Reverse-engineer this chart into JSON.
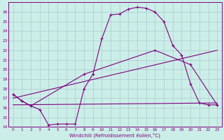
{
  "xlabel": "Windchill (Refroidissement éolien,°C)",
  "bg_color": "#cceee8",
  "grid_color": "#aacccc",
  "line_color": "#800080",
  "xlim": [
    -0.5,
    23.5
  ],
  "ylim": [
    14,
    27
  ],
  "xticks": [
    0,
    1,
    2,
    3,
    4,
    5,
    6,
    7,
    8,
    9,
    10,
    11,
    12,
    13,
    14,
    15,
    16,
    17,
    18,
    19,
    20,
    21,
    22,
    23
  ],
  "yticks": [
    14,
    15,
    16,
    17,
    18,
    19,
    20,
    21,
    22,
    23,
    24,
    25,
    26
  ],
  "line1_x": [
    0,
    1,
    2,
    3,
    4,
    5,
    6,
    7,
    8,
    9,
    10,
    11,
    12,
    13,
    14,
    15,
    16,
    17,
    18,
    19,
    20,
    21,
    22,
    23
  ],
  "line1_y": [
    17.4,
    16.7,
    16.2,
    15.8,
    14.2,
    14.3,
    14.3,
    14.3,
    18.0,
    19.5,
    23.2,
    25.7,
    25.8,
    26.3,
    26.5,
    26.4,
    26.0,
    25.0,
    22.5,
    21.5,
    18.5,
    16.5,
    16.3,
    16.3
  ],
  "line2_x": [
    0,
    1,
    2,
    8,
    16,
    20,
    23
  ],
  "line2_y": [
    17.4,
    16.7,
    16.2,
    19.5,
    22.0,
    20.5,
    16.3
  ],
  "line3_x": [
    0,
    23
  ],
  "line3_y": [
    17.0,
    22.0
  ],
  "line4_x": [
    0,
    23
  ],
  "line4_y": [
    16.3,
    16.5
  ]
}
